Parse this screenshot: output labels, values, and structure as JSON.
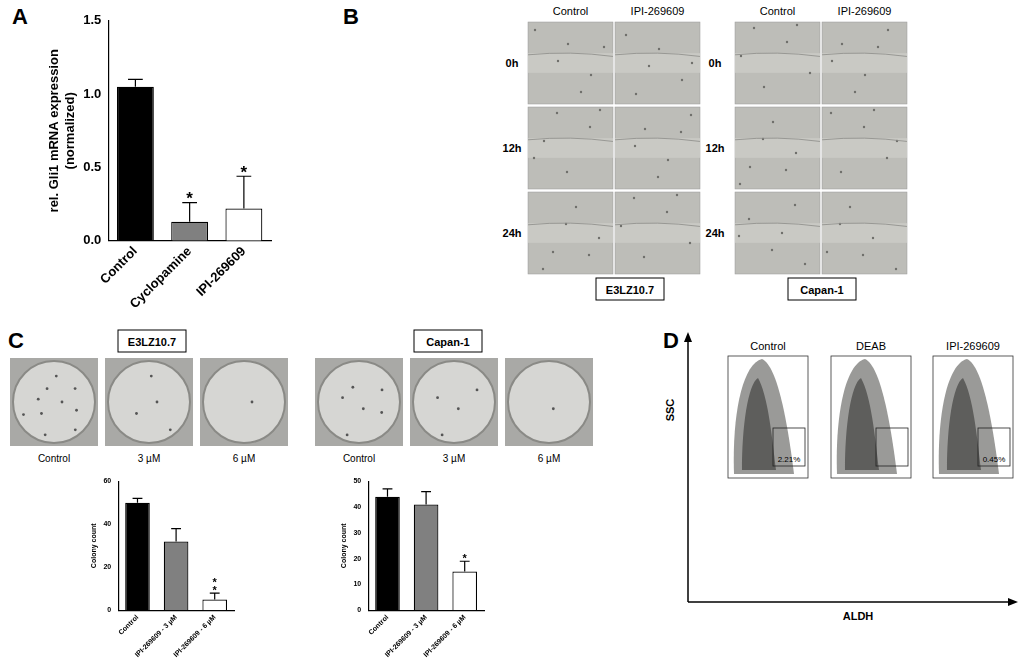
{
  "chart_data": [
    {
      "panel": "A",
      "type": "bar",
      "categories": [
        "Control",
        "Cyclopamine",
        "IPI-269609"
      ],
      "values": [
        1.05,
        0.13,
        0.22
      ],
      "errors": [
        0.05,
        0.13,
        0.22
      ],
      "colors": [
        "#000000",
        "#808080",
        "#ffffff"
      ],
      "y_label": [
        "rel. Gli1 mRNA expression",
        "(normalized)"
      ],
      "ylim": [
        0,
        1.5
      ],
      "yticks": [
        {
          "value": 0,
          "label": "0.0"
        },
        {
          "value": 0.5,
          "label": "0.5"
        },
        {
          "value": 1,
          "label": "1.0"
        },
        {
          "value": 1.5,
          "label": "1.5"
        }
      ],
      "annotations": [
        {
          "category": "Cyclopamine",
          "text": "*"
        },
        {
          "category": "IPI-269609",
          "text": "*"
        }
      ],
      "grid": false
    },
    {
      "type": "bar",
      "categories": [
        "Control",
        "IPI-269609 - 3 µM",
        "IPI-269609 - 6 µM"
      ],
      "values": [
        50,
        32,
        5
      ],
      "errors": [
        2,
        6,
        3
      ],
      "colors": [
        "#000000",
        "#808080",
        "#ffffff"
      ],
      "y_label": "Colony count",
      "ylim": [
        0,
        60
      ],
      "yticks": [
        0,
        20,
        40,
        60
      ],
      "annotations": [
        {
          "category": "IPI-269609 - 6 µM",
          "text": "**"
        }
      ],
      "grid": false
    },
    {
      "type": "bar",
      "categories": [
        "Control",
        "IPI-269609 - 3 µM",
        "IPI-269609 - 6 µM"
      ],
      "values": [
        44,
        41,
        15
      ],
      "errors": [
        3,
        5,
        4
      ],
      "colors": [
        "#000000",
        "#808080",
        "#ffffff"
      ],
      "y_label": "Colony count",
      "ylim": [
        0,
        50
      ],
      "yticks": [
        0,
        10,
        20,
        30,
        40,
        50
      ],
      "annotations": [
        {
          "category": "IPI-269609 - 6 µM",
          "text": "*"
        }
      ],
      "grid": false
    }
  ],
  "figure": {
    "B": {
      "panel": "B",
      "groups": [
        {
          "name": "E3LZ10.7",
          "columns": [
            "Control",
            "IPI-269609"
          ],
          "rows": [
            "0h",
            "12h",
            "24h"
          ]
        },
        {
          "name": "Capan-1",
          "columns": [
            "Control",
            "IPI-269609"
          ],
          "rows": [
            "0h",
            "12h",
            "24h"
          ]
        }
      ]
    },
    "C": {
      "panel": "C",
      "groups": [
        {
          "name": "E3LZ10.7",
          "dishes": [
            "Control",
            "3 µM",
            "6 µM"
          ]
        },
        {
          "name": "Capan-1",
          "dishes": [
            "Control",
            "3 µM",
            "6 µM"
          ]
        }
      ]
    },
    "D": {
      "panel": "D",
      "y_axis": "SSC",
      "x_axis": "ALDH",
      "plots": [
        {
          "name": "Control",
          "gate_label": "2.21%"
        },
        {
          "name": "DEAB"
        },
        {
          "name": "IPI-269609",
          "gate_label": "0.45%"
        }
      ]
    }
  }
}
